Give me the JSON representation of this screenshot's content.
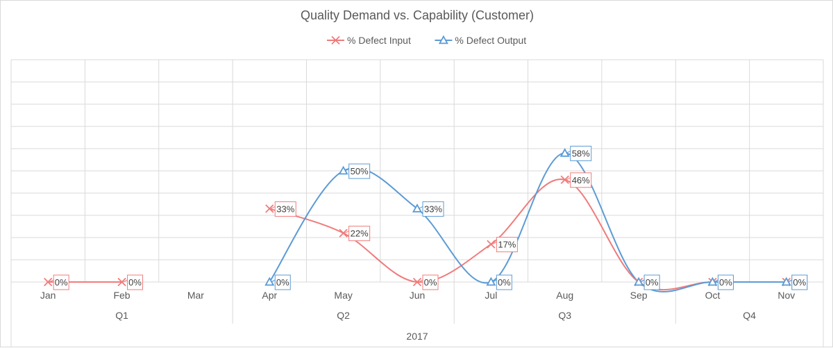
{
  "chart_data": {
    "type": "line",
    "title": "Quality Demand vs. Capability (Customer)",
    "xlabel": "",
    "ylabel": "",
    "ylim": [
      0,
      1.0
    ],
    "grid": true,
    "legend_position": "top",
    "categories": [
      "Jan",
      "Feb",
      "Mar",
      "Apr",
      "May",
      "Jun",
      "Jul",
      "Aug",
      "Sep",
      "Oct",
      "Nov"
    ],
    "quarters": [
      {
        "label": "Q1",
        "months": [
          "Jan",
          "Feb",
          "Mar"
        ]
      },
      {
        "label": "Q2",
        "months": [
          "Apr",
          "May",
          "Jun"
        ]
      },
      {
        "label": "Q3",
        "months": [
          "Jul",
          "Aug",
          "Sep"
        ]
      },
      {
        "label": "Q4",
        "months": [
          "Oct",
          "Nov"
        ]
      }
    ],
    "year": "2017",
    "series": [
      {
        "name": "% Defect Input",
        "color": "#f07b7b",
        "marker": "x",
        "values": [
          0,
          0,
          null,
          0.33,
          0.22,
          0,
          0.17,
          0.46,
          0,
          0,
          0
        ],
        "labels": [
          "0%",
          "0%",
          null,
          "33%",
          "22%",
          "0%",
          "17%",
          "46%",
          "0%",
          "0%",
          "0%"
        ]
      },
      {
        "name": "% Defect Output",
        "color": "#5b9bd5",
        "marker": "triangle",
        "values": [
          null,
          null,
          null,
          0,
          0.5,
          0.33,
          0,
          0.58,
          0,
          0,
          0
        ],
        "labels": [
          null,
          null,
          null,
          "0%",
          "50%",
          "33%",
          "0%",
          "58%",
          "0%",
          "0%",
          "0%"
        ]
      }
    ]
  }
}
